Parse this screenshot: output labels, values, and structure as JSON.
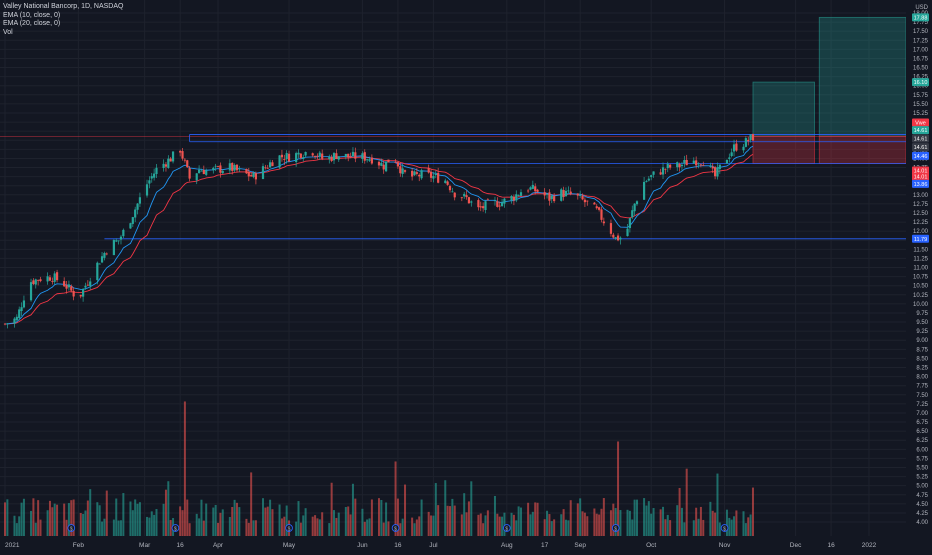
{
  "chart_data": {
    "type": "candlestick",
    "title": "Valley National Bancorp, 1D, NASDAQ",
    "indicators": [
      "EMA (10, close, 0)",
      "EMA (20, close, 0)",
      "Vol"
    ],
    "currency": "USD",
    "y_ticks": [
      "18.00",
      "17.75",
      "17.50",
      "17.25",
      "17.00",
      "16.75",
      "16.50",
      "16.25",
      "16.00",
      "15.75",
      "15.50",
      "15.25",
      "15.00",
      "14.75",
      "14.50",
      "14.25",
      "14.00",
      "13.75",
      "13.50",
      "13.25",
      "13.00",
      "12.75",
      "12.50",
      "12.25",
      "12.00",
      "11.75",
      "11.50",
      "11.25",
      "11.00",
      "10.75",
      "10.50",
      "10.25",
      "10.00",
      "9.75",
      "9.50",
      "9.25",
      "9.00",
      "8.75",
      "8.50",
      "8.25",
      "8.00",
      "7.75",
      "7.50",
      "7.25",
      "7.00",
      "6.75",
      "6.50",
      "6.25",
      "6.00",
      "5.75",
      "5.50",
      "5.25",
      "5.00",
      "4.75",
      "4.50",
      "4.25",
      "4.00"
    ],
    "x_ticks": [
      {
        "label": "2021",
        "day": 0
      },
      {
        "label": "Feb",
        "day": 31
      },
      {
        "label": "Mar",
        "day": 59
      },
      {
        "label": "16",
        "day": 74
      },
      {
        "label": "Apr",
        "day": 90
      },
      {
        "label": "May",
        "day": 120
      },
      {
        "label": "Jun",
        "day": 151
      },
      {
        "label": "16",
        "day": 166
      },
      {
        "label": "Jul",
        "day": 181
      },
      {
        "label": "Aug",
        "day": 212
      },
      {
        "label": "17",
        "day": 228
      },
      {
        "label": "Sep",
        "day": 243
      },
      {
        "label": "Oct",
        "day": 273
      },
      {
        "label": "Nov",
        "day": 304
      },
      {
        "label": "Dec",
        "day": 334
      },
      {
        "label": "16",
        "day": 349
      },
      {
        "label": "2022",
        "day": 365
      }
    ],
    "ohlc_keypoints": [
      [
        0,
        9.45
      ],
      [
        5,
        9.6
      ],
      [
        10,
        10.6
      ],
      [
        15,
        10.7
      ],
      [
        20,
        10.75
      ],
      [
        25,
        10.55
      ],
      [
        31,
        10.15
      ],
      [
        36,
        10.75
      ],
      [
        40,
        11.2
      ],
      [
        44,
        11.6
      ],
      [
        48,
        11.75
      ],
      [
        52,
        12.2
      ],
      [
        56,
        12.75
      ],
      [
        60,
        13.3
      ],
      [
        64,
        13.7
      ],
      [
        70,
        14.0
      ],
      [
        74,
        14.25
      ],
      [
        78,
        13.45
      ],
      [
        82,
        13.7
      ],
      [
        86,
        13.65
      ],
      [
        90,
        13.7
      ],
      [
        95,
        13.75
      ],
      [
        100,
        13.6
      ],
      [
        105,
        13.5
      ],
      [
        110,
        13.75
      ],
      [
        115,
        14.05
      ],
      [
        120,
        14.05
      ],
      [
        125,
        14.15
      ],
      [
        130,
        14.2
      ],
      [
        135,
        13.95
      ],
      [
        140,
        14.1
      ],
      [
        145,
        14.05
      ],
      [
        150,
        14.05
      ],
      [
        155,
        14.0
      ],
      [
        160,
        13.8
      ],
      [
        164,
        14.1
      ],
      [
        168,
        13.6
      ],
      [
        172,
        13.5
      ],
      [
        176,
        13.55
      ],
      [
        181,
        13.5
      ],
      [
        186,
        13.4
      ],
      [
        190,
        13.05
      ],
      [
        195,
        12.9
      ],
      [
        200,
        12.6
      ],
      [
        205,
        12.75
      ],
      [
        210,
        12.8
      ],
      [
        215,
        12.95
      ],
      [
        220,
        13.2
      ],
      [
        225,
        13.1
      ],
      [
        230,
        12.9
      ],
      [
        235,
        13.05
      ],
      [
        240,
        13.0
      ],
      [
        245,
        12.8
      ],
      [
        250,
        12.55
      ],
      [
        255,
        12.1
      ],
      [
        258,
        11.8
      ],
      [
        262,
        11.85
      ],
      [
        266,
        12.75
      ],
      [
        270,
        13.35
      ],
      [
        275,
        13.6
      ],
      [
        280,
        13.75
      ],
      [
        285,
        13.8
      ],
      [
        290,
        13.95
      ],
      [
        295,
        13.95
      ],
      [
        300,
        13.5
      ],
      [
        303,
        13.85
      ],
      [
        308,
        14.3
      ],
      [
        313,
        14.45
      ],
      [
        316,
        14.59
      ]
    ],
    "volume_millions": {
      "ticks": [
        "7.50",
        "7.00",
        "6.50",
        "6.00",
        "5.50",
        "5.00",
        "4.50",
        "4.00"
      ],
      "peak_day": 76
    },
    "horizontal_levels": [
      {
        "name": "resistance-upper",
        "price": 14.46,
        "label": "14.46",
        "color": "#2962ff"
      },
      {
        "name": "resistance-top",
        "price": 14.66,
        "label": "",
        "color": "#2962ff"
      },
      {
        "name": "breakout-level",
        "price": 13.86,
        "label": "13.86",
        "color": "#2962ff"
      },
      {
        "name": "support-level",
        "price": 11.79,
        "label": "11.79",
        "color": "#2962ff"
      },
      {
        "name": "red-line",
        "price": 14.61,
        "label": "",
        "color": "#f23645"
      }
    ],
    "position_boxes": [
      {
        "name": "long-position-1",
        "day_start": 316,
        "day_end": 342,
        "entry": 14.61,
        "target": 16.1,
        "stop": 13.86
      },
      {
        "name": "long-position-2",
        "day_start": 344,
        "day_end": 388,
        "entry": 14.61,
        "target": 17.88,
        "stop": 13.86
      }
    ],
    "price_labels": [
      {
        "text": "17.88",
        "price": 17.88,
        "bg": "#26a69a",
        "fg": "#ffffff"
      },
      {
        "text": "16.10",
        "price": 16.1,
        "bg": "#26a69a",
        "fg": "#ffffff"
      },
      {
        "text": "Vwe",
        "price": 14.99,
        "bg": "#f23645",
        "fg": "#ffffff"
      },
      {
        "text": "14.61",
        "price": 14.78,
        "bg": "#26a69a",
        "fg": "#ffffff"
      },
      {
        "text": "14.61",
        "price": 14.55,
        "bg": "#363a45",
        "fg": "#ffffff"
      },
      {
        "text": "14.61",
        "price": 14.31,
        "bg": "#363a45",
        "fg": "#ffffff"
      },
      {
        "text": "14.46",
        "price": 14.07,
        "bg": "#2962ff",
        "fg": "#ffffff"
      },
      {
        "text": "14.01",
        "price": 13.67,
        "bg": "#f23645",
        "fg": "#ffffff"
      },
      {
        "text": "14.01",
        "price": 13.5,
        "bg": "#f23645",
        "fg": "#ffffff"
      },
      {
        "text": "13.86",
        "price": 13.3,
        "bg": "#2962ff",
        "fg": "#ffffff"
      },
      {
        "text": "11.79",
        "price": 11.79,
        "bg": "#2962ff",
        "fg": "#ffffff"
      }
    ],
    "colors": {
      "up": "#26a69a",
      "down": "#ef5350",
      "ema10": "#2196f3",
      "ema20": "#f23645",
      "grid": "#1e222d",
      "text": "#b2b5be"
    },
    "grid": true,
    "legend_placement": "top-left"
  }
}
